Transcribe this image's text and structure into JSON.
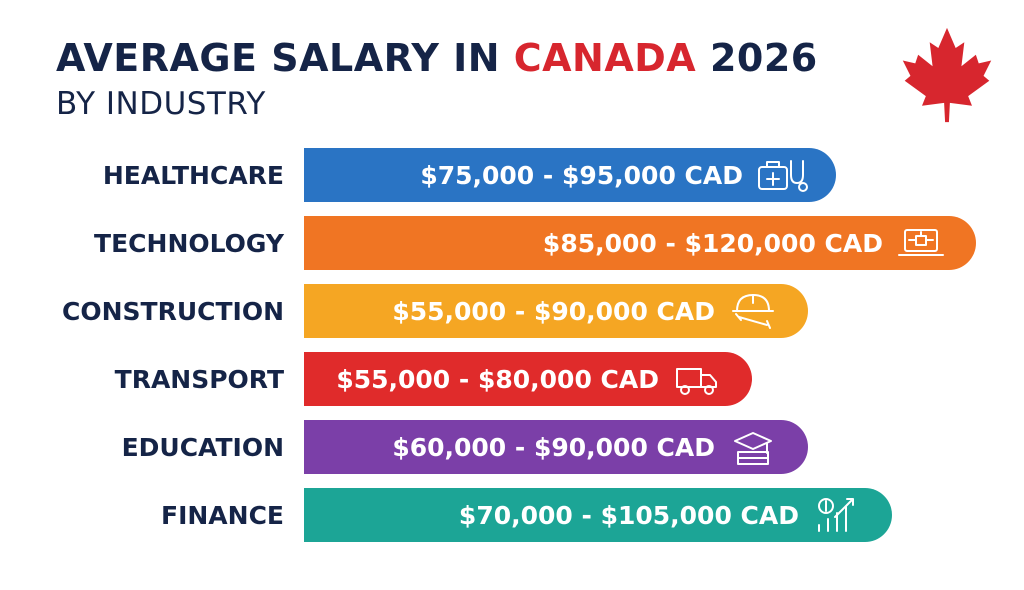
{
  "header": {
    "title_main": "AVERAGE SALARY IN",
    "title_accent": "CANADA",
    "title_year": "2026",
    "subtitle": "BY INDUSTRY"
  },
  "colors": {
    "title": "#152447",
    "accent": "#d7262e",
    "maple_leaf": "#d7262e"
  },
  "chart_data": {
    "type": "bar",
    "orientation": "horizontal",
    "categories": [
      "HEALTHCARE",
      "TECHNOLOGY",
      "CONSTRUCTION",
      "TRANSPORT",
      "EDUCATION",
      "FINANCE"
    ],
    "ranges": [
      [
        75000,
        95000
      ],
      [
        85000,
        120000
      ],
      [
        55000,
        90000
      ],
      [
        55000,
        80000
      ],
      [
        60000,
        90000
      ],
      [
        70000,
        105000
      ]
    ],
    "labels": [
      "$75,000 - $95,000 CAD",
      "$85,000 - $120,000 CAD",
      "$55,000 - $90,000 CAD",
      "$55,000 - $80,000 CAD",
      "$60,000 - $90,000 CAD",
      "$70,000 - $105,000 CAD"
    ],
    "colors": [
      "#2a74c4",
      "#f07523",
      "#f5a623",
      "#e02b2b",
      "#7b3fa8",
      "#1ca596"
    ],
    "icons": [
      "medical-kit-stethoscope-icon",
      "laptop-circuit-icon",
      "hard-hat-wrench-icon",
      "delivery-truck-icon",
      "graduation-cap-books-icon",
      "dollar-growth-chart-icon"
    ],
    "xlim": [
      0,
      120000
    ],
    "grid": false,
    "legend": "none"
  }
}
